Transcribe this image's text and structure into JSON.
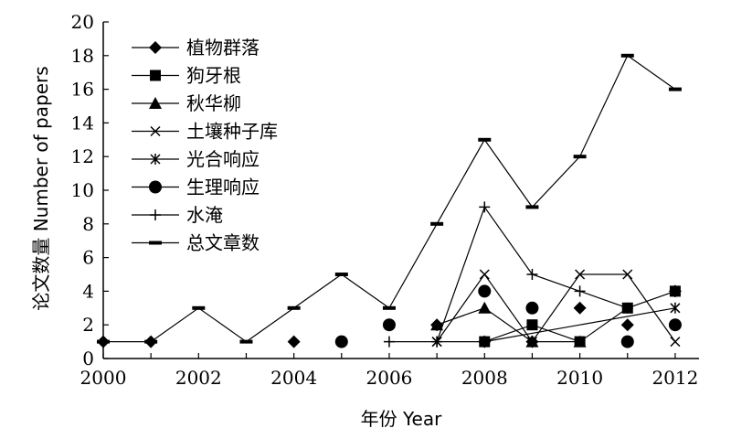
{
  "chart_data": {
    "type": "line",
    "xlabel": "年份 Year",
    "ylabel": "论文数量 Number of papers",
    "xlim": [
      2000,
      2012.5
    ],
    "ylim": [
      0,
      20
    ],
    "xticks": [
      2000,
      2002,
      2004,
      2006,
      2008,
      2010,
      2012
    ],
    "yticks": [
      0,
      2,
      4,
      6,
      8,
      10,
      12,
      14,
      16,
      18,
      20
    ],
    "grid": false,
    "legend_position": "top-left",
    "series": [
      {
        "name": "植物群落",
        "marker": "diamond",
        "connected": false,
        "points": [
          [
            2000,
            1
          ],
          [
            2001,
            1
          ],
          [
            2004,
            1
          ],
          [
            2007,
            2
          ],
          [
            2008,
            1
          ],
          [
            2009,
            1
          ],
          [
            2010,
            3
          ],
          [
            2011,
            2
          ],
          [
            2012,
            4
          ]
        ]
      },
      {
        "name": "狗牙根",
        "marker": "square",
        "connected": true,
        "points": [
          [
            2008,
            1
          ],
          [
            2009,
            2
          ],
          [
            2010,
            1
          ],
          [
            2011,
            3
          ],
          [
            2012,
            4
          ]
        ]
      },
      {
        "name": "秋华柳",
        "marker": "triangle",
        "connected": true,
        "points": [
          [
            2007,
            2
          ],
          [
            2008,
            3
          ],
          [
            2009,
            1
          ],
          [
            2010,
            1
          ]
        ]
      },
      {
        "name": "土壤种子库",
        "marker": "x",
        "connected": true,
        "points": [
          [
            2007,
            1
          ],
          [
            2008,
            5
          ],
          [
            2009,
            1
          ],
          [
            2010,
            5
          ],
          [
            2011,
            5
          ],
          [
            2012,
            1
          ]
        ]
      },
      {
        "name": "光合响应",
        "marker": "asterisk",
        "connected": true,
        "points": [
          [
            2007,
            1
          ],
          [
            2008,
            1
          ],
          [
            2012,
            3
          ]
        ]
      },
      {
        "name": "生理响应",
        "marker": "circle",
        "connected": false,
        "points": [
          [
            2005,
            1
          ],
          [
            2006,
            2
          ],
          [
            2008,
            4
          ],
          [
            2009,
            3
          ],
          [
            2011,
            1
          ],
          [
            2012,
            2
          ]
        ]
      },
      {
        "name": "水淹",
        "marker": "plus",
        "connected": true,
        "points": [
          [
            2006,
            1
          ],
          [
            2007,
            1
          ],
          [
            2008,
            9
          ],
          [
            2009,
            5
          ],
          [
            2010,
            4
          ],
          [
            2011,
            3
          ]
        ]
      },
      {
        "name": "总文章数",
        "marker": "dash",
        "connected": true,
        "points": [
          [
            2000,
            1
          ],
          [
            2001,
            1
          ],
          [
            2002,
            3
          ],
          [
            2003,
            1
          ],
          [
            2004,
            3
          ],
          [
            2005,
            5
          ],
          [
            2006,
            3
          ],
          [
            2007,
            8
          ],
          [
            2008,
            13
          ],
          [
            2009,
            9
          ],
          [
            2010,
            12
          ],
          [
            2011,
            18
          ],
          [
            2012,
            16
          ]
        ]
      }
    ]
  }
}
